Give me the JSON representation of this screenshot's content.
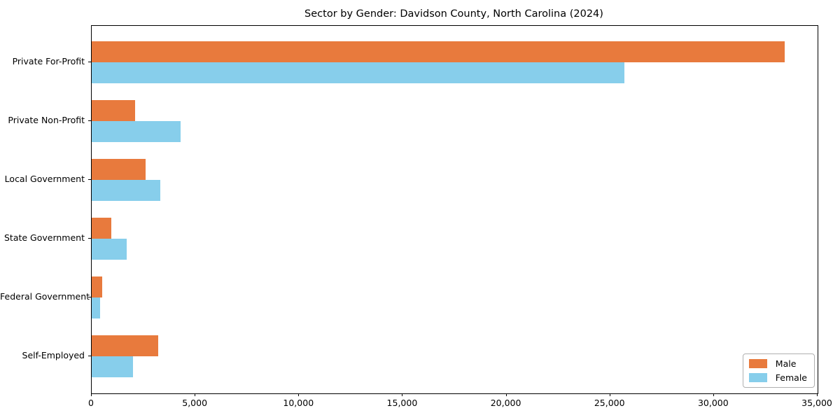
{
  "chart_data": {
    "type": "bar",
    "orientation": "horizontal",
    "title": "Sector by Gender: Davidson County, North Carolina (2024)",
    "categories": [
      "Private For-Profit",
      "Private Non-Profit",
      "Local Government",
      "State Government",
      "Federal Government",
      "Self-Employed"
    ],
    "series": [
      {
        "name": "Male",
        "color": "#e87a3d",
        "values": [
          33400,
          2100,
          2600,
          950,
          500,
          3200
        ]
      },
      {
        "name": "Female",
        "color": "#87ceeb",
        "values": [
          25700,
          4300,
          3300,
          1700,
          400,
          2000
        ]
      }
    ],
    "xlabel": "",
    "ylabel": "",
    "xlim": [
      0,
      35000
    ],
    "x_ticks": [
      0,
      5000,
      10000,
      15000,
      20000,
      25000,
      30000,
      35000
    ],
    "x_tick_labels": [
      "0",
      "5,000",
      "10,000",
      "15,000",
      "20,000",
      "25,000",
      "30,000",
      "35,000"
    ],
    "grid": false,
    "legend": {
      "position": "lower right",
      "entries": [
        "Male",
        "Female"
      ]
    }
  }
}
